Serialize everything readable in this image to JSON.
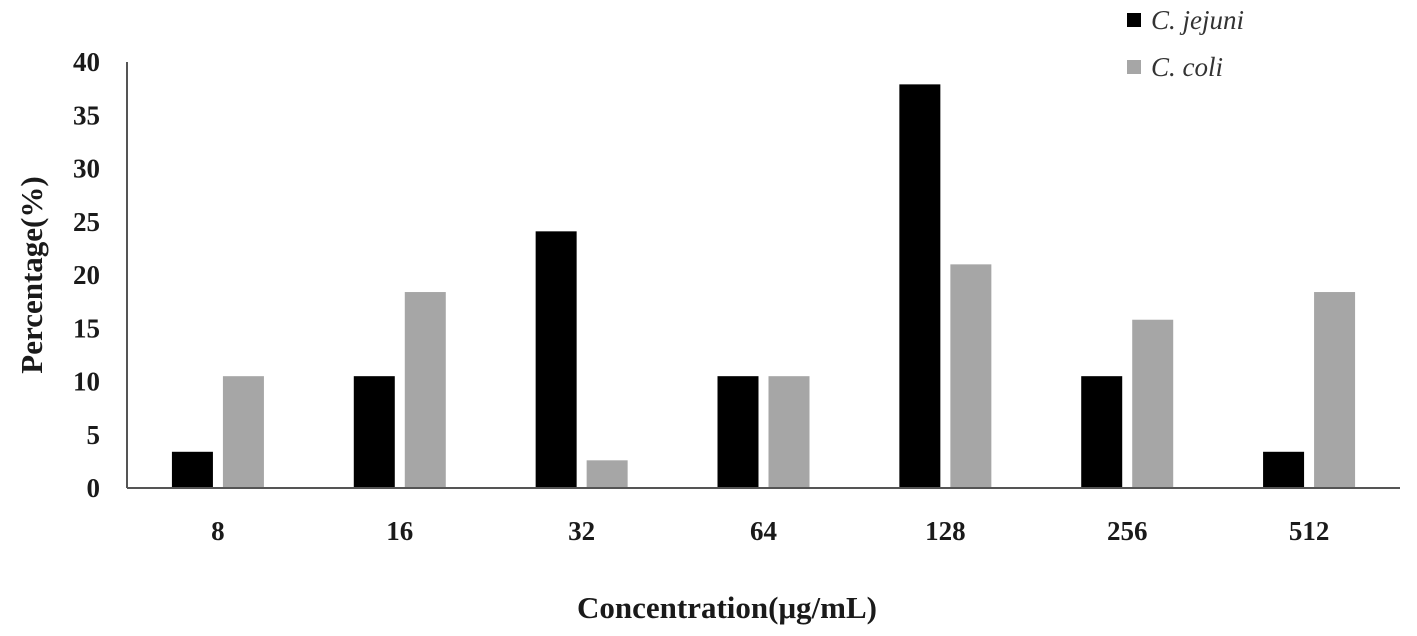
{
  "chart_data": {
    "type": "bar",
    "title": "",
    "xlabel": "Concentration(μg/mL)",
    "ylabel": "Percentage(%)",
    "categories": [
      "8",
      "16",
      "32",
      "64",
      "128",
      "256",
      "512"
    ],
    "ylim": [
      0,
      40
    ],
    "yticks": [
      "0",
      "5",
      "10",
      "15",
      "20",
      "25",
      "30",
      "35",
      "40"
    ],
    "grid": false,
    "legend_position": "top-right",
    "series": [
      {
        "name": "C. jejuni",
        "color": "#000000",
        "values": [
          3.4,
          10.5,
          24.1,
          10.5,
          37.9,
          10.5,
          3.4
        ]
      },
      {
        "name": "C. coli",
        "color": "#a6a6a6",
        "values": [
          10.5,
          18.4,
          2.6,
          10.5,
          21.0,
          15.8,
          18.4
        ]
      }
    ]
  }
}
